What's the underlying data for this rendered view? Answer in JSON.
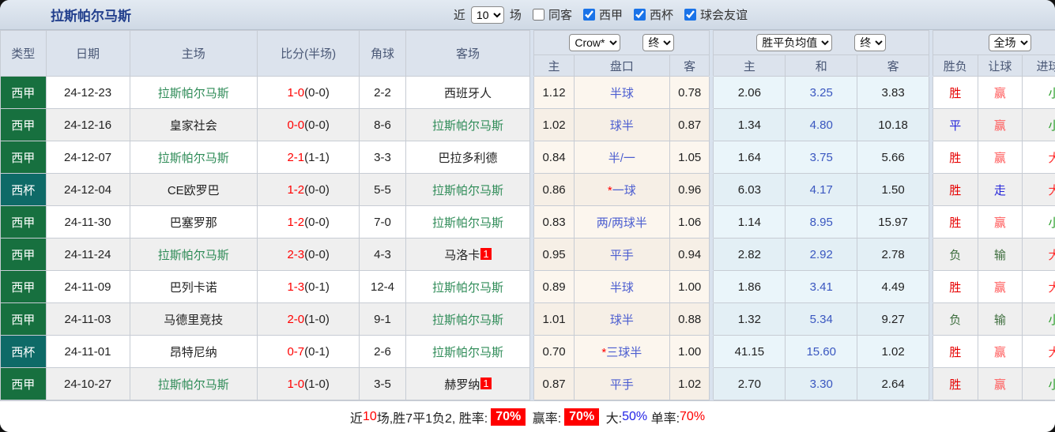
{
  "title": "拉斯帕尔马斯",
  "filters": {
    "near_label": "近",
    "near_value": "10",
    "games_label": "场",
    "same_away": {
      "label": "同客",
      "checked": false
    },
    "leagues": [
      {
        "label": "西甲",
        "checked": true
      },
      {
        "label": "西杯",
        "checked": true
      },
      {
        "label": "球会友谊",
        "checked": true
      }
    ]
  },
  "table": {
    "headers": [
      "类型",
      "日期",
      "主场",
      "比分(半场)",
      "角球",
      "客场"
    ],
    "selects": {
      "company": "Crow*",
      "final_a": "终",
      "average": "胜平负均值",
      "final_b": "终",
      "scope": "全场"
    },
    "sub_headers": [
      "主",
      "盘口",
      "客",
      "主",
      "和",
      "客",
      "胜负",
      "让球",
      "进球数"
    ],
    "rows": [
      {
        "type": "西甲",
        "type_bg": "league_green_bg",
        "date": "24-12-23",
        "home": "拉斯帕尔马斯",
        "home_hl": true,
        "home_badge": "",
        "ft": "1-0",
        "ht": "(0-0)",
        "corner": "2-2",
        "away": "西班牙人",
        "away_hl": false,
        "away_badge": "",
        "hc_home": "1.12",
        "star": false,
        "handicap": "半球",
        "hc_away": "0.78",
        "avg_home": "2.06",
        "avg_draw": "3.25",
        "avg_away": "3.83",
        "res": "胜",
        "res_c": "win_red",
        "let": "赢",
        "let_c": "win_light_red",
        "goal": "小",
        "goal_c": "small_green"
      },
      {
        "type": "西甲",
        "type_bg": "league_green_bg",
        "date": "24-12-16",
        "home": "皇家社会",
        "home_hl": false,
        "home_badge": "",
        "ft": "0-0",
        "ht": "(0-0)",
        "corner": "8-6",
        "away": "拉斯帕尔马斯",
        "away_hl": true,
        "away_badge": "",
        "hc_home": "1.02",
        "star": false,
        "handicap": "球半",
        "hc_away": "0.87",
        "avg_home": "1.34",
        "avg_draw": "4.80",
        "avg_away": "10.18",
        "res": "平",
        "res_c": "draw_blue",
        "let": "赢",
        "let_c": "win_light_red",
        "goal": "小",
        "goal_c": "small_green"
      },
      {
        "type": "西甲",
        "type_bg": "league_green_bg",
        "date": "24-12-07",
        "home": "拉斯帕尔马斯",
        "home_hl": true,
        "home_badge": "",
        "ft": "2-1",
        "ht": "(1-1)",
        "corner": "3-3",
        "away": "巴拉多利德",
        "away_hl": false,
        "away_badge": "",
        "hc_home": "0.84",
        "star": false,
        "handicap": "半/一",
        "hc_away": "1.05",
        "avg_home": "1.64",
        "avg_draw": "3.75",
        "avg_away": "5.66",
        "res": "胜",
        "res_c": "win_red",
        "let": "赢",
        "let_c": "win_light_red",
        "goal": "大",
        "goal_c": "big_red"
      },
      {
        "type": "西杯",
        "type_bg": "cup_teal_bg",
        "date": "24-12-04",
        "home": "CE欧罗巴",
        "home_hl": false,
        "home_badge": "",
        "ft": "1-2",
        "ht": "(0-0)",
        "corner": "5-5",
        "away": "拉斯帕尔马斯",
        "away_hl": true,
        "away_badge": "",
        "hc_home": "0.86",
        "star": true,
        "handicap": "一球",
        "hc_away": "0.96",
        "avg_home": "6.03",
        "avg_draw": "4.17",
        "avg_away": "1.50",
        "res": "胜",
        "res_c": "win_red",
        "let": "走",
        "let_c": "walk_blue",
        "goal": "大",
        "goal_c": "big_red"
      },
      {
        "type": "西甲",
        "type_bg": "league_green_bg",
        "date": "24-11-30",
        "home": "巴塞罗那",
        "home_hl": false,
        "home_badge": "",
        "ft": "1-2",
        "ht": "(0-0)",
        "corner": "7-0",
        "away": "拉斯帕尔马斯",
        "away_hl": true,
        "away_badge": "",
        "hc_home": "0.83",
        "star": false,
        "handicap": "两/两球半",
        "hc_away": "1.06",
        "avg_home": "1.14",
        "avg_draw": "8.95",
        "avg_away": "15.97",
        "res": "胜",
        "res_c": "win_red",
        "let": "赢",
        "let_c": "win_light_red",
        "goal": "小",
        "goal_c": "small_green"
      },
      {
        "type": "西甲",
        "type_bg": "league_green_bg",
        "date": "24-11-24",
        "home": "拉斯帕尔马斯",
        "home_hl": true,
        "home_badge": "",
        "ft": "2-3",
        "ht": "(0-0)",
        "corner": "4-3",
        "away": "马洛卡",
        "away_hl": false,
        "away_badge": "1",
        "hc_home": "0.95",
        "star": false,
        "handicap": "平手",
        "hc_away": "0.94",
        "avg_home": "2.82",
        "avg_draw": "2.92",
        "avg_away": "2.78",
        "res": "负",
        "res_c": "lose_green",
        "let": "输",
        "let_c": "lose_green",
        "goal": "大",
        "goal_c": "big_red"
      },
      {
        "type": "西甲",
        "type_bg": "league_green_bg",
        "date": "24-11-09",
        "home": "巴列卡诺",
        "home_hl": false,
        "home_badge": "",
        "ft": "1-3",
        "ht": "(0-1)",
        "corner": "12-4",
        "away": "拉斯帕尔马斯",
        "away_hl": true,
        "away_badge": "",
        "hc_home": "0.89",
        "star": false,
        "handicap": "半球",
        "hc_away": "1.00",
        "avg_home": "1.86",
        "avg_draw": "3.41",
        "avg_away": "4.49",
        "res": "胜",
        "res_c": "win_red",
        "let": "赢",
        "let_c": "win_light_red",
        "goal": "大",
        "goal_c": "big_red"
      },
      {
        "type": "西甲",
        "type_bg": "league_green_bg",
        "date": "24-11-03",
        "home": "马德里竞技",
        "home_hl": false,
        "home_badge": "",
        "ft": "2-0",
        "ht": "(1-0)",
        "corner": "9-1",
        "away": "拉斯帕尔马斯",
        "away_hl": true,
        "away_badge": "",
        "hc_home": "1.01",
        "star": false,
        "handicap": "球半",
        "hc_away": "0.88",
        "avg_home": "1.32",
        "avg_draw": "5.34",
        "avg_away": "9.27",
        "res": "负",
        "res_c": "lose_green",
        "let": "输",
        "let_c": "lose_green",
        "goal": "小",
        "goal_c": "small_green"
      },
      {
        "type": "西杯",
        "type_bg": "cup_teal_bg",
        "date": "24-11-01",
        "home": "昂特尼纳",
        "home_hl": false,
        "home_badge": "",
        "ft": "0-7",
        "ht": "(0-1)",
        "corner": "2-6",
        "away": "拉斯帕尔马斯",
        "away_hl": true,
        "away_badge": "",
        "hc_home": "0.70",
        "star": true,
        "handicap": "三球半",
        "hc_away": "1.00",
        "avg_home": "41.15",
        "avg_draw": "15.60",
        "avg_away": "1.02",
        "res": "胜",
        "res_c": "win_red",
        "let": "赢",
        "let_c": "win_light_red",
        "goal": "大",
        "goal_c": "big_red"
      },
      {
        "type": "西甲",
        "type_bg": "league_green_bg",
        "date": "24-10-27",
        "home": "拉斯帕尔马斯",
        "home_hl": true,
        "home_badge": "",
        "ft": "1-0",
        "ht": "(1-0)",
        "corner": "3-5",
        "away": "赫罗纳",
        "away_hl": false,
        "away_badge": "1",
        "hc_home": "0.87",
        "star": false,
        "handicap": "平手",
        "hc_away": "1.02",
        "avg_home": "2.70",
        "avg_draw": "3.30",
        "avg_away": "2.64",
        "res": "胜",
        "res_c": "win_red",
        "let": "赢",
        "let_c": "win_light_red",
        "goal": "小",
        "goal_c": "small_green"
      }
    ]
  },
  "footer": {
    "segments": [
      {
        "t": "近",
        "s": "plain"
      },
      {
        "t": "10",
        "s": "red"
      },
      {
        "t": "场,胜7平1负2, 胜率:",
        "s": "plain"
      },
      {
        "t": "70%",
        "s": "badge"
      },
      {
        "t": " 赢率:",
        "s": "plain"
      },
      {
        "t": "70%",
        "s": "badge"
      },
      {
        "t": " 大:",
        "s": "plain"
      },
      {
        "t": "50%",
        "s": "blue"
      },
      {
        "t": " 单率:",
        "s": "plain"
      },
      {
        "t": "70%",
        "s": "red"
      }
    ]
  },
  "colors": {
    "league_green_bg": "#17703f",
    "cup_teal_bg": "#0e6a67",
    "team_green": "#2e8b57",
    "score_red": "#ff0000",
    "handicap_blue": "#4c5ed0",
    "avg_draw_blue": "#3a57c0",
    "win_red": "#e60000",
    "draw_blue": "#2626d9",
    "lose_green": "#3e6e3e",
    "win_light_red": "#ff5a5a",
    "walk_blue": "#2626d9",
    "big_red": "#ff2d2d",
    "small_green": "#2da02d",
    "badge_red": "#ff0000",
    "accent_checkbox": "#1a73e8"
  }
}
